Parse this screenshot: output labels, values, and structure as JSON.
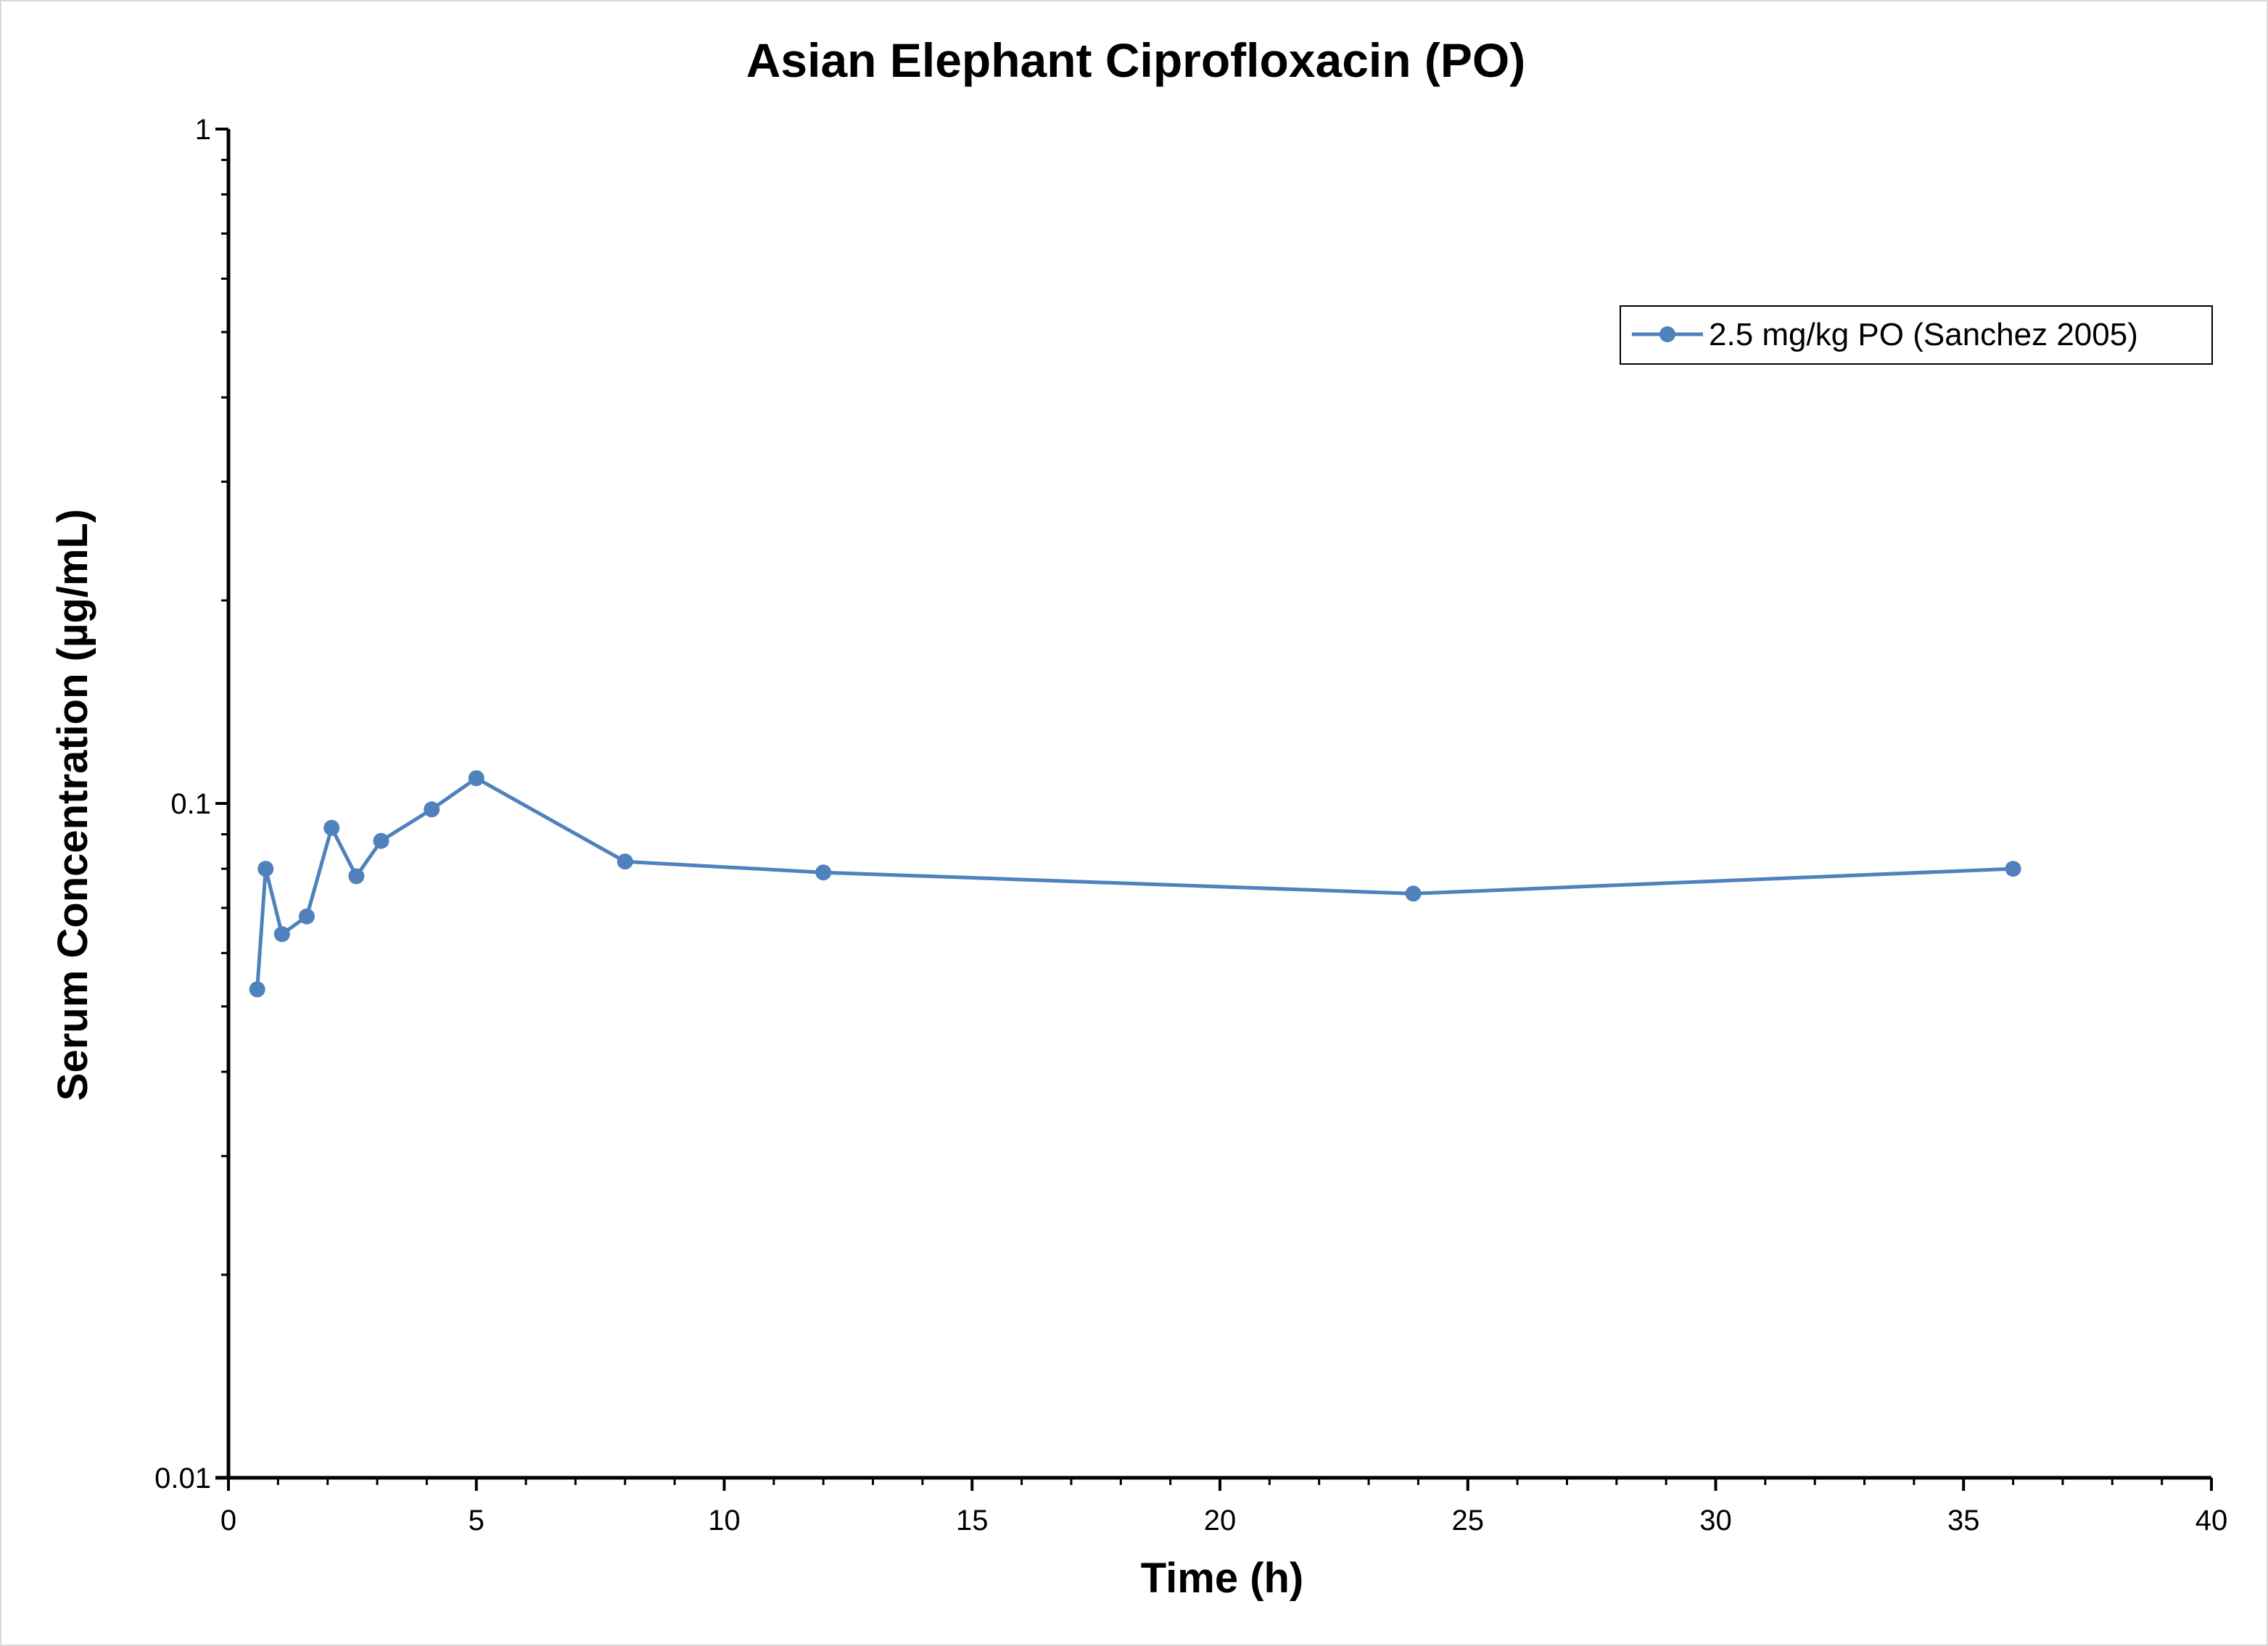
{
  "colors": {
    "series": "#4f81bd",
    "axis": "#000000",
    "frame": "#d9d9d9"
  },
  "chart_data": {
    "type": "line",
    "title": "Asian Elephant Ciprofloxacin (PO)",
    "xlabel": "Time (h)",
    "ylabel": "Serum Concentration (µg/mL)",
    "xlim": [
      0,
      40
    ],
    "ylim": [
      0.01,
      1
    ],
    "yscale": "log",
    "grid": false,
    "legend_position": "top-right",
    "x_ticks": [
      "0",
      "5",
      "10",
      "15",
      "20",
      "25",
      "30",
      "35",
      "40"
    ],
    "y_ticks": [
      "0.01",
      "0.1",
      "1"
    ],
    "series": [
      {
        "name": "2.5 mg/kg PO (Sanchez 2005)",
        "marker": "circle",
        "points": [
          {
            "x": 0.58,
            "y": 0.053
          },
          {
            "x": 0.75,
            "y": 0.08
          },
          {
            "x": 1.08,
            "y": 0.064
          },
          {
            "x": 1.58,
            "y": 0.068
          },
          {
            "x": 2.08,
            "y": 0.092
          },
          {
            "x": 2.58,
            "y": 0.078
          },
          {
            "x": 3.08,
            "y": 0.088
          },
          {
            "x": 4.1,
            "y": 0.098
          },
          {
            "x": 5.0,
            "y": 0.109
          },
          {
            "x": 8.0,
            "y": 0.082
          },
          {
            "x": 12.0,
            "y": 0.079
          },
          {
            "x": 23.9,
            "y": 0.0735
          },
          {
            "x": 36.0,
            "y": 0.08
          }
        ]
      }
    ]
  }
}
